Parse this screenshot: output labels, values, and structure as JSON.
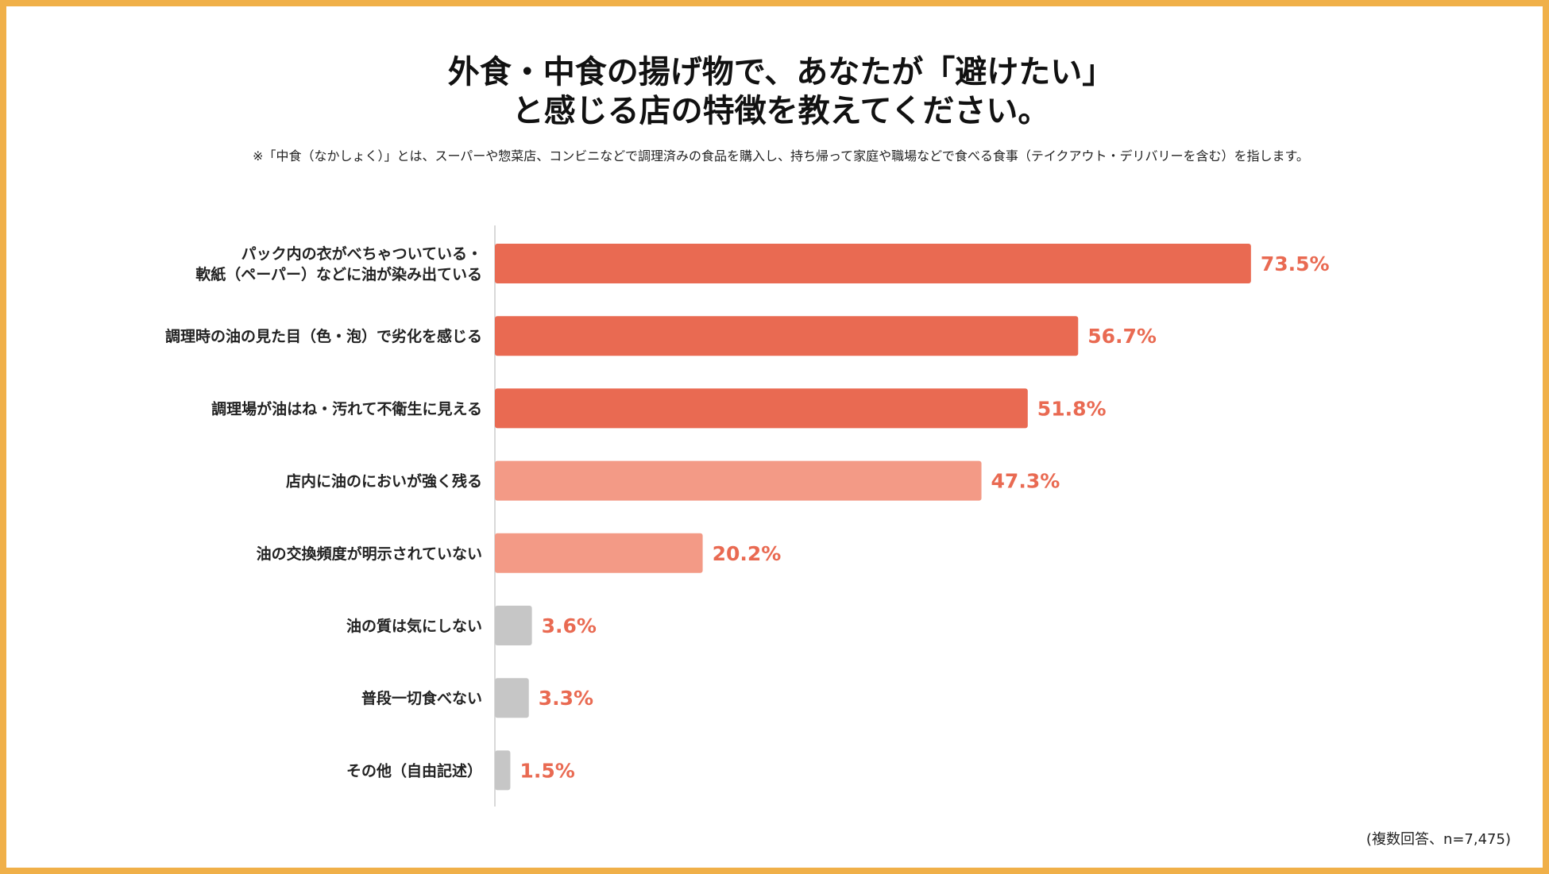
{
  "colors": {
    "border": "#F0B049",
    "bar_strong": "#E96A52",
    "bar_medium": "#F39A86",
    "bar_gray": "#C6C6C6",
    "value_text": "#E96A52",
    "axis": "#D9D9D9"
  },
  "chart_data": {
    "type": "bar",
    "orientation": "horizontal",
    "title": [
      "外食・中食の揚げ物で、あなたが「避けたい」",
      "と感じる店の特徴を教えてください。"
    ],
    "note": "※「中食（なかしょく）」とは、スーパーや惣菜店、コンビニなどで調理済みの食品を購入し、持ち帰って家庭や職場などで食べる食事（テイクアウト・デリバリーを含む）を指します。",
    "footer": "(複数回答、n=7,475)",
    "unit": "%",
    "xlim": [
      0,
      100
    ],
    "categories": [
      [
        "パック内の衣がべちゃついている・",
        "軟紙（ペーパー）などに油が染み出ている"
      ],
      [
        "調理時の油の見た目（色・泡）で劣化を感じる"
      ],
      [
        "調理場が油はね・汚れて不衛生に見える"
      ],
      [
        "店内に油のにおいが強く残る"
      ],
      [
        "油の交換頻度が明示されていない"
      ],
      [
        "油の質は気にしない"
      ],
      [
        "普段一切食べない"
      ],
      [
        "その他（自由記述）"
      ]
    ],
    "values": [
      73.5,
      56.7,
      51.8,
      47.3,
      20.2,
      3.6,
      3.3,
      1.5
    ],
    "value_labels": [
      "73.5%",
      "56.7%",
      "51.8%",
      "47.3%",
      "20.2%",
      "3.6%",
      "3.3%",
      "1.5%"
    ],
    "color_groups": [
      "strong",
      "strong",
      "strong",
      "medium",
      "medium",
      "gray",
      "gray",
      "gray"
    ]
  }
}
